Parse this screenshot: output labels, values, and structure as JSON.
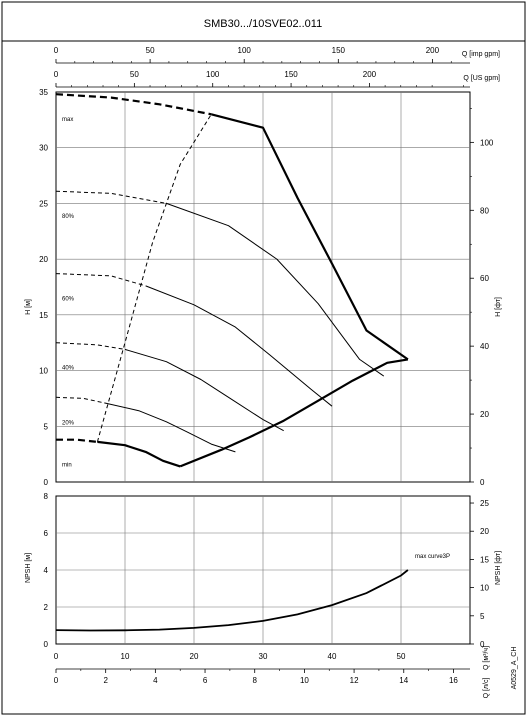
{
  "chart_data": {
    "type": "line",
    "title": "SMB30.../10SVE02..011",
    "code": "A0529_A_CH",
    "head_chart": {
      "ylabel": "H [м]",
      "ylabel_right": "H [фт]",
      "ylim": [
        0,
        35
      ],
      "xlim": [
        0,
        60
      ],
      "yticks": [
        "0",
        "5",
        "10",
        "15",
        "20",
        "25",
        "30",
        "35"
      ],
      "yticks_right": [
        "0",
        "20",
        "40",
        "60",
        "80",
        "100"
      ],
      "yticks_right_values": [
        0,
        20,
        40,
        60,
        80,
        100
      ],
      "top_axis_imp": {
        "label": "Q [imp gpm]",
        "ticks": [
          "0",
          "50",
          "100",
          "150",
          "200"
        ],
        "values": [
          0,
          50,
          100,
          150,
          200
        ]
      },
      "top_axis_us": {
        "label": "Q [US gpm]",
        "ticks": [
          "0",
          "50",
          "100",
          "150",
          "200"
        ],
        "values": [
          0,
          50,
          100,
          150,
          200
        ]
      },
      "speed_labels": [
        "max",
        "80%",
        "60%",
        "40%",
        "20%",
        "min"
      ],
      "series": [
        {
          "name": "max",
          "dashed_x": [
            0,
            8,
            15,
            22.5
          ],
          "dashed_y": [
            34.8,
            34.5,
            33.9,
            33.0
          ],
          "solid_x": [
            22.5,
            30,
            35,
            40,
            45,
            51
          ],
          "solid_y": [
            33.0,
            31.8,
            25.5,
            19.6,
            13.6,
            11.0
          ]
        },
        {
          "name": "80%",
          "dashed_x": [
            0,
            8,
            16
          ],
          "dashed_y": [
            26.1,
            25.9,
            25.0
          ],
          "solid_x": [
            16,
            25,
            32,
            38,
            44,
            47.5
          ],
          "solid_y": [
            25.0,
            23.0,
            20.0,
            16.0,
            11.0,
            9.5
          ]
        },
        {
          "name": "60%",
          "dashed_x": [
            0,
            8,
            13
          ],
          "dashed_y": [
            18.7,
            18.5,
            17.6
          ],
          "solid_x": [
            13,
            20,
            26,
            31,
            37,
            40
          ],
          "solid_y": [
            17.6,
            15.9,
            13.9,
            11.4,
            8.3,
            6.8
          ]
        },
        {
          "name": "40%",
          "dashed_x": [
            0,
            6,
            10
          ],
          "dashed_y": [
            12.5,
            12.3,
            11.9
          ],
          "solid_x": [
            10,
            16,
            21,
            25,
            30,
            33
          ],
          "solid_y": [
            11.9,
            10.8,
            9.2,
            7.6,
            5.6,
            4.6
          ]
        },
        {
          "name": "20%",
          "dashed_x": [
            0,
            4,
            7
          ],
          "dashed_y": [
            7.6,
            7.5,
            7.1
          ],
          "solid_x": [
            7,
            12,
            16,
            19,
            22.5,
            26
          ],
          "solid_y": [
            7.1,
            6.4,
            5.4,
            4.5,
            3.4,
            2.7
          ]
        },
        {
          "name": "min",
          "dashed_x": [
            0,
            3,
            6
          ],
          "dashed_y": [
            3.8,
            3.8,
            3.6
          ],
          "solid_x": [
            6,
            10,
            13,
            15.5,
            18
          ],
          "solid_y": [
            3.6,
            3.3,
            2.7,
            1.9,
            1.4
          ]
        }
      ],
      "envelope_bottom": {
        "x": [
          18,
          24,
          28,
          33,
          38,
          43,
          48,
          51
        ],
        "y": [
          1.4,
          2.9,
          4.0,
          5.5,
          7.3,
          9.1,
          10.7,
          11.0
        ]
      },
      "envelope_left_dashed": {
        "x": [
          6,
          10,
          14,
          18,
          22.5
        ],
        "y": [
          3.6,
          12.5,
          21.5,
          28.5,
          33.0
        ]
      }
    },
    "npsh_chart": {
      "ylabel": "NPSH [м]",
      "ylabel_right": "NPSH [фт]",
      "ylim": [
        0,
        8
      ],
      "xlim": [
        0,
        60
      ],
      "yticks": [
        "0",
        "2",
        "4",
        "6",
        "8"
      ],
      "yticks_right": [
        "0",
        "5",
        "10",
        "15",
        "20",
        "25"
      ],
      "yticks_right_values": [
        0,
        5,
        10,
        15,
        20,
        25
      ],
      "curve_label": "max curve3P",
      "curve": {
        "x": [
          0,
          5,
          10,
          15,
          20,
          25,
          30,
          35,
          40,
          45,
          50,
          51
        ],
        "y": [
          0.75,
          0.73,
          0.74,
          0.78,
          0.87,
          1.02,
          1.25,
          1.6,
          2.1,
          2.75,
          3.7,
          4.0
        ]
      }
    },
    "bottom_axis_m3h": {
      "label": "Q [м³/ч]",
      "ticks": [
        "0",
        "10",
        "20",
        "30",
        "40",
        "50"
      ],
      "values": [
        0,
        10,
        20,
        30,
        40,
        50
      ]
    },
    "bottom_axis_ls": {
      "label": "Q [л/с]",
      "ticks": [
        "0",
        "2",
        "4",
        "6",
        "8",
        "10",
        "12",
        "14",
        "16"
      ],
      "values": [
        0,
        2,
        4,
        6,
        8,
        10,
        12,
        14,
        16
      ]
    }
  }
}
